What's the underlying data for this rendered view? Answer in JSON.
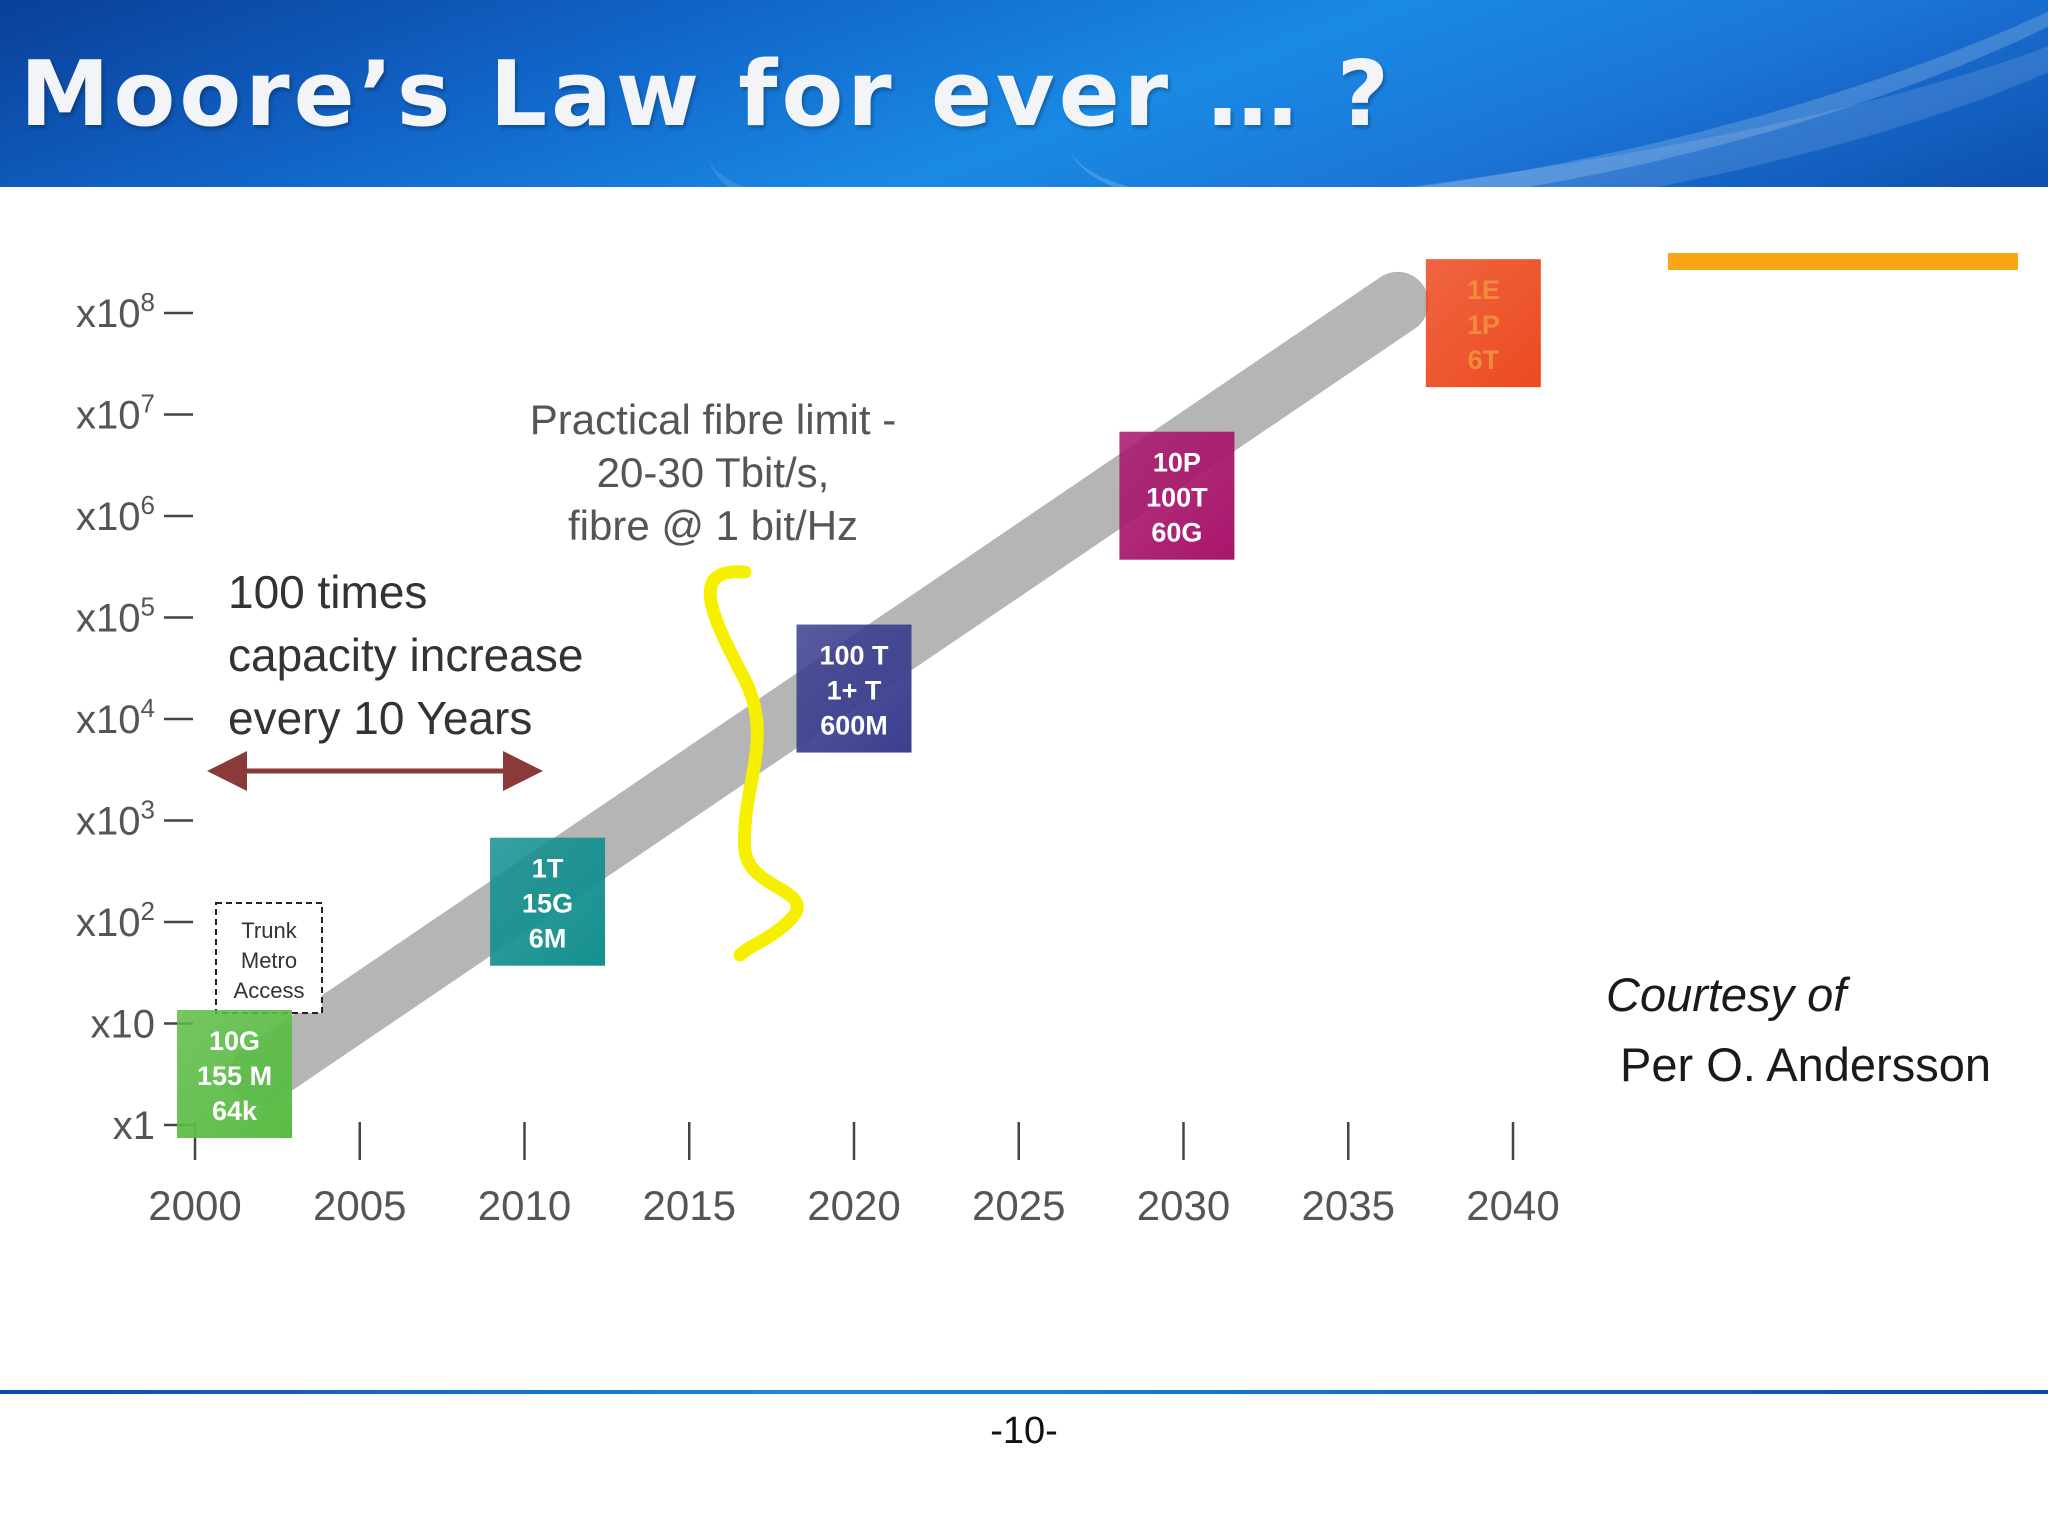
{
  "slide": {
    "title": "Moore’s Law for ever … ?",
    "page_number": "-10-",
    "courtesy_line1": "Courtesy of",
    "courtesy_line2": "Per O. Andersson",
    "colors": {
      "header": "#1166c9",
      "accent_bar": "#f8a616",
      "footer_line": "#1a8ae4"
    }
  },
  "chart_data": {
    "type": "line",
    "title": "",
    "xlabel": "",
    "ylabel": "",
    "x_ticks": [
      2000,
      2005,
      2010,
      2015,
      2020,
      2025,
      2030,
      2035,
      2040
    ],
    "y_ticks": [
      {
        "exp": 0,
        "base": "x1",
        "sup": ""
      },
      {
        "exp": 1,
        "base": "x10",
        "sup": ""
      },
      {
        "exp": 2,
        "base": "x10",
        "sup": "2"
      },
      {
        "exp": 3,
        "base": "x10",
        "sup": "3"
      },
      {
        "exp": 4,
        "base": "x10",
        "sup": "4"
      },
      {
        "exp": 5,
        "base": "x10",
        "sup": "5"
      },
      {
        "exp": 6,
        "base": "x10",
        "sup": "6"
      },
      {
        "exp": 7,
        "base": "x10",
        "sup": "7"
      },
      {
        "exp": 8,
        "base": "x10",
        "sup": "8"
      }
    ],
    "xlim": [
      2000,
      2040
    ],
    "ylim_exponent": [
      0,
      8
    ],
    "y_scale": "log",
    "trend": {
      "x": [
        2002,
        2036.5
      ],
      "y_exponent": [
        0.5,
        8.1
      ],
      "color": "#b5b5b5"
    },
    "milestones": [
      {
        "year": 2001.2,
        "y_exponent": 0,
        "lines": [
          "10G",
          "155 M",
          "64k"
        ],
        "color": "#5cbc46"
      },
      {
        "year": 2010.7,
        "y_exponent": 2.2,
        "lines": [
          "1T",
          "15G",
          "6M"
        ],
        "color": "#14908f"
      },
      {
        "year": 2020,
        "y_exponent": 4.3,
        "lines": [
          "100 T",
          "1+ T",
          "600M"
        ],
        "color": "#3c3f8e"
      },
      {
        "year": 2029.8,
        "y_exponent": 6.2,
        "lines": [
          "10P",
          "100T",
          "60G"
        ],
        "color": "#a8156b"
      },
      {
        "year": 2039.1,
        "y_exponent": 7.9,
        "lines": [
          "1E",
          "1P",
          "6T"
        ],
        "color": "#ec4a20"
      }
    ],
    "legend_box": {
      "lines": [
        "Trunk",
        "Metro",
        "Access"
      ]
    },
    "annotations": {
      "fibre_limit": [
        "Practical fibre limit -",
        "20-30 Tbit/s,",
        "fibre @ 1 bit/Hz"
      ],
      "capacity": [
        "100 times",
        "capacity increase",
        "every 10 Years"
      ]
    }
  }
}
